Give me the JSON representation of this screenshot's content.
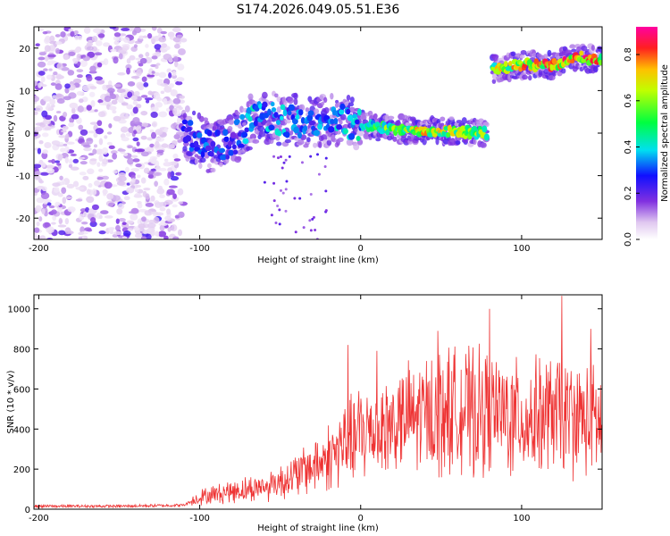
{
  "title": "S174.2026.049.05.51.E36",
  "chart_data": [
    {
      "type": "heatmap",
      "xlabel": "Height of straight line (km)",
      "ylabel": "Frequency (Hz)",
      "xlim": [
        -203,
        150
      ],
      "ylim": [
        -25,
        25
      ],
      "xticks": [
        -200,
        -100,
        0,
        100
      ],
      "yticks": [
        20,
        10,
        0,
        -10,
        -20
      ],
      "colorbar": {
        "label": "Normalized spectral amplitude",
        "range": [
          0,
          0.92
        ],
        "ticks": [
          0.0,
          0.2,
          0.4,
          0.6,
          0.8
        ]
      },
      "ridge": [
        {
          "x": -108,
          "freq": 0,
          "amplitude": 0.3
        },
        {
          "x": -95,
          "freq": -3,
          "amplitude": 0.35
        },
        {
          "x": -80,
          "freq": -2,
          "amplitude": 0.3
        },
        {
          "x": -65,
          "freq": 4,
          "amplitude": 0.45
        },
        {
          "x": -45,
          "freq": 3,
          "amplitude": 0.4
        },
        {
          "x": -30,
          "freq": 3,
          "amplitude": 0.35
        },
        {
          "x": -15,
          "freq": 3,
          "amplitude": 0.4
        },
        {
          "x": 0,
          "freq": 2,
          "amplitude": 0.45
        },
        {
          "x": 20,
          "freq": 1,
          "amplitude": 0.7
        },
        {
          "x": 40,
          "freq": 0.5,
          "amplitude": 0.75
        },
        {
          "x": 60,
          "freq": 0.5,
          "amplitude": 0.7
        },
        {
          "x": 78,
          "freq": 0,
          "amplitude": 0.65
        },
        {
          "x": 82,
          "freq": 15,
          "amplitude": 0.7
        },
        {
          "x": 100,
          "freq": 16,
          "amplitude": 0.8
        },
        {
          "x": 120,
          "freq": 16,
          "amplitude": 0.85
        },
        {
          "x": 135,
          "freq": 18,
          "amplitude": 0.9
        },
        {
          "x": 150,
          "freq": 17,
          "amplitude": 0.8
        }
      ],
      "noise_region": {
        "x_from": -203,
        "x_to": -110,
        "freq_from": -25,
        "freq_to": 25
      }
    },
    {
      "type": "line",
      "xlabel": "Height of straight line (km)",
      "ylabel": "SNR (10 * v/v)",
      "xlim": [
        -203,
        150
      ],
      "ylim": [
        0,
        1070
      ],
      "xticks": [
        -200,
        -100,
        0,
        100
      ],
      "yticks": [
        0,
        200,
        400,
        600,
        800,
        1000
      ],
      "color": "#ee3333",
      "trend": {
        "x": [
          -203,
          -150,
          -110,
          -100,
          -80,
          -60,
          -40,
          -20,
          0,
          20,
          50,
          80,
          100,
          120,
          150
        ],
        "y": [
          15,
          15,
          20,
          60,
          90,
          110,
          170,
          260,
          380,
          420,
          500,
          480,
          450,
          470,
          430
        ]
      },
      "peaks": [
        {
          "x": -8,
          "y": 820
        },
        {
          "x": 10,
          "y": 790
        },
        {
          "x": 48,
          "y": 890
        },
        {
          "x": 80,
          "y": 1000
        },
        {
          "x": 125,
          "y": 1065
        },
        {
          "x": 143,
          "y": 900
        }
      ]
    }
  ]
}
